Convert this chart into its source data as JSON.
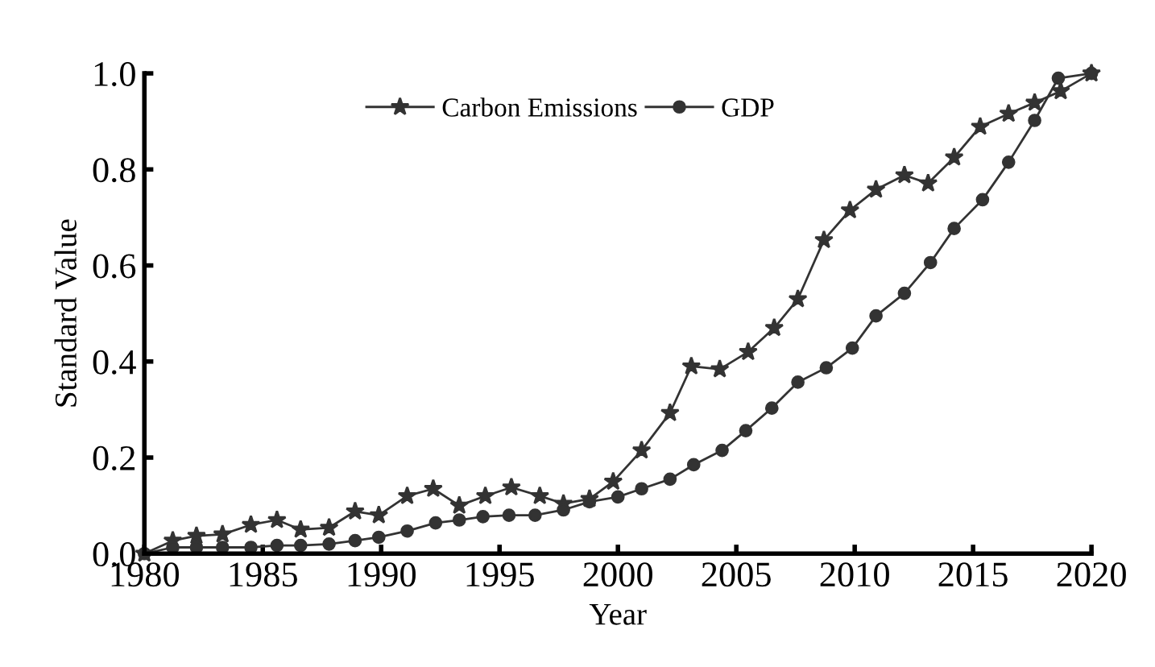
{
  "chart_data": {
    "type": "line",
    "xlabel": "Year",
    "ylabel": "Standard Value",
    "xlim": [
      1980,
      2020
    ],
    "ylim": [
      0,
      1.0
    ],
    "xticks": [
      1980,
      1985,
      1990,
      1995,
      2000,
      2005,
      2010,
      2015,
      2020
    ],
    "yticks": [
      {
        "value": 0,
        "label": "0.0"
      },
      {
        "value": 0.2,
        "label": "0.2"
      },
      {
        "value": 0.4,
        "label": "0.4"
      },
      {
        "value": 0.6,
        "label": "0.6"
      },
      {
        "value": 0.8,
        "label": "0.8"
      },
      {
        "value": 1.0,
        "label": "1.0"
      }
    ],
    "grid": false,
    "legend": "top",
    "line_style": "solid",
    "series": [
      {
        "name": "Carbon Emissions",
        "color": "#333333",
        "marker": "star",
        "x": [
          1980,
          1981.2,
          1982.2,
          1983.3,
          1984.5,
          1985.6,
          1986.6,
          1987.8,
          1988.9,
          1989.9,
          1991.1,
          1992.2,
          1993.3,
          1994.4,
          1995.5,
          1996.7,
          1997.7,
          1998.8,
          1999.8,
          2001.0,
          2002.2,
          2003.1,
          2004.3,
          2005.5,
          2006.6,
          2007.6,
          2008.7,
          2009.8,
          2010.9,
          2012.1,
          2013.1,
          2014.2,
          2015.3,
          2016.5,
          2017.6,
          2018.7,
          2020
        ],
        "values": [
          0.0,
          0.027,
          0.037,
          0.04,
          0.06,
          0.07,
          0.05,
          0.054,
          0.088,
          0.08,
          0.12,
          0.135,
          0.1,
          0.12,
          0.138,
          0.12,
          0.104,
          0.114,
          0.15,
          0.215,
          0.293,
          0.39,
          0.384,
          0.42,
          0.47,
          0.53,
          0.653,
          0.715,
          0.758,
          0.788,
          0.771,
          0.825,
          0.889,
          0.916,
          0.939,
          0.963,
          1.0
        ]
      },
      {
        "name": "GDP",
        "color": "#333333",
        "marker": "circle",
        "x": [
          1980,
          1981.2,
          1982.2,
          1983.3,
          1984.5,
          1985.6,
          1986.6,
          1987.8,
          1988.9,
          1989.9,
          1991.1,
          1992.3,
          1993.3,
          1994.3,
          1995.4,
          1996.5,
          1997.7,
          1998.8,
          2000.0,
          2001.0,
          2002.2,
          2003.2,
          2004.4,
          2005.4,
          2006.5,
          2007.6,
          2008.8,
          2009.9,
          2010.9,
          2012.1,
          2013.2,
          2014.2,
          2015.4,
          2016.5,
          2017.6,
          2018.6,
          2020
        ],
        "values": [
          0.0,
          0.013,
          0.013,
          0.013,
          0.013,
          0.017,
          0.017,
          0.02,
          0.027,
          0.034,
          0.047,
          0.064,
          0.07,
          0.077,
          0.08,
          0.08,
          0.091,
          0.108,
          0.118,
          0.135,
          0.155,
          0.185,
          0.215,
          0.256,
          0.303,
          0.357,
          0.387,
          0.428,
          0.495,
          0.542,
          0.606,
          0.677,
          0.737,
          0.815,
          0.902,
          0.99,
          1.0
        ]
      }
    ]
  }
}
